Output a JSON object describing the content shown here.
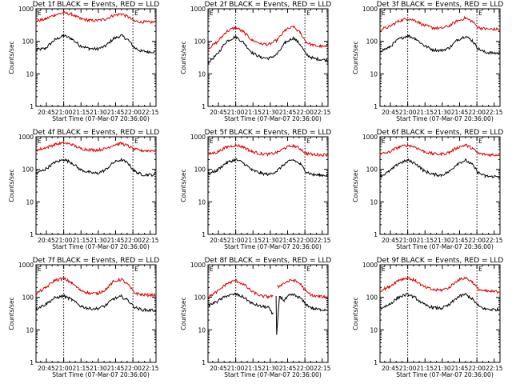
{
  "colors": {
    "events": "#000000",
    "lld": "#e00000"
  },
  "chart_data": [
    {
      "type": "line",
      "title": "Det 1f BLACK = Events, RED = LLD",
      "xlabel": "Start Time (07-Mar-07 20:36:00)",
      "ylabel": "Counts/sec",
      "x_tick_labels": [
        "20:45",
        "21:00",
        "21:15",
        "21:30",
        "21:45",
        "22:00",
        "22:15"
      ],
      "y_tick_labels": [
        "1",
        "10",
        "100",
        "1000"
      ],
      "yscale": "log",
      "ylim": [
        1,
        1000
      ],
      "xlim_minutes": [
        36,
        140
      ],
      "marker_labels": [
        "E",
        "E"
      ],
      "series": [
        {
          "color": "black",
          "x": [
            36,
            44,
            52,
            60,
            67,
            74,
            82,
            89,
            96,
            103,
            110,
            116,
            121,
            127,
            133,
            140
          ],
          "y": [
            55,
            60,
            110,
            150,
            120,
            75,
            60,
            58,
            70,
            120,
            150,
            110,
            65,
            50,
            48,
            48
          ]
        },
        {
          "color": "red",
          "x": [
            36,
            44,
            52,
            60,
            67,
            74,
            82,
            89,
            96,
            103,
            110,
            116,
            121,
            127,
            133,
            140
          ],
          "y": [
            420,
            480,
            650,
            750,
            680,
            500,
            440,
            430,
            480,
            620,
            700,
            560,
            420,
            400,
            390,
            390
          ]
        }
      ]
    },
    {
      "type": "line",
      "title": "Det 2f BLACK = Events, RED = LLD",
      "xlabel": "Start Time (07-Mar-07 20:36:00)",
      "ylabel": "Counts/sec",
      "x_tick_labels": [
        "20:45",
        "21:00",
        "21:15",
        "21:30",
        "21:45",
        "22:00",
        "22:15"
      ],
      "y_tick_labels": [
        "1",
        "10",
        "100",
        "1000"
      ],
      "yscale": "log",
      "ylim": [
        1,
        1000
      ],
      "xlim_minutes": [
        36,
        140
      ],
      "marker_labels": [
        "E",
        "E"
      ],
      "series": [
        {
          "color": "black",
          "x": [
            36,
            44,
            52,
            60,
            67,
            74,
            82,
            89,
            96,
            103,
            110,
            116,
            121,
            127,
            133,
            140
          ],
          "y": [
            22,
            40,
            100,
            140,
            90,
            45,
            32,
            30,
            40,
            90,
            130,
            80,
            40,
            30,
            28,
            26
          ]
        },
        {
          "color": "red",
          "x": [
            36,
            44,
            52,
            60,
            67,
            74,
            82,
            89,
            96,
            103,
            110,
            116,
            121,
            127,
            133,
            140
          ],
          "y": [
            60,
            95,
            200,
            270,
            190,
            110,
            85,
            80,
            110,
            220,
            280,
            180,
            95,
            75,
            70,
            68
          ]
        }
      ]
    },
    {
      "type": "line",
      "title": "Det 3f BLACK = Events, RED = LLD",
      "xlabel": "Start Time (07-Mar-07 20:36:00)",
      "ylabel": "Counts/sec",
      "x_tick_labels": [
        "20:45",
        "21:00",
        "21:15",
        "21:30",
        "21:45",
        "22:00",
        "22:15"
      ],
      "y_tick_labels": [
        "1",
        "10",
        "100",
        "1000"
      ],
      "yscale": "log",
      "ylim": [
        1,
        1000
      ],
      "xlim_minutes": [
        36,
        140
      ],
      "marker_labels": [
        "E",
        "E"
      ],
      "series": [
        {
          "color": "black",
          "x": [
            36,
            44,
            52,
            60,
            67,
            74,
            82,
            89,
            96,
            103,
            110,
            116,
            121,
            127,
            133,
            140
          ],
          "y": [
            50,
            65,
            115,
            150,
            120,
            75,
            55,
            52,
            62,
            110,
            145,
            105,
            60,
            46,
            44,
            43
          ]
        },
        {
          "color": "red",
          "x": [
            36,
            44,
            52,
            60,
            67,
            74,
            82,
            89,
            96,
            103,
            110,
            116,
            121,
            127,
            133,
            140
          ],
          "y": [
            230,
            280,
            420,
            500,
            430,
            310,
            260,
            250,
            300,
            420,
            520,
            410,
            270,
            240,
            235,
            235
          ]
        }
      ]
    },
    {
      "type": "line",
      "title": "Det 4f BLACK = Events, RED = LLD",
      "xlabel": "Start Time (07-Mar-07 20:36:00)",
      "ylabel": "Counts/sec",
      "x_tick_labels": [
        "20:45",
        "21:00",
        "21:15",
        "21:30",
        "21:45",
        "22:00",
        "22:15"
      ],
      "y_tick_labels": [
        "1",
        "10",
        "100",
        "1000"
      ],
      "yscale": "log",
      "ylim": [
        1,
        1000
      ],
      "xlim_minutes": [
        36,
        140
      ],
      "marker_labels": [
        "E",
        "E"
      ],
      "series": [
        {
          "color": "black",
          "x": [
            36,
            44,
            52,
            60,
            67,
            74,
            82,
            89,
            96,
            103,
            110,
            116,
            121,
            127,
            133,
            140
          ],
          "y": [
            75,
            100,
            160,
            200,
            160,
            100,
            80,
            75,
            95,
            160,
            200,
            150,
            90,
            70,
            68,
            68
          ]
        },
        {
          "color": "red",
          "x": [
            36,
            44,
            52,
            60,
            67,
            74,
            82,
            89,
            96,
            103,
            110,
            116,
            121,
            127,
            133,
            140
          ],
          "y": [
            390,
            450,
            580,
            650,
            580,
            440,
            400,
            390,
            430,
            560,
            630,
            520,
            410,
            380,
            375,
            375
          ]
        }
      ]
    },
    {
      "type": "line",
      "title": "Det 5f BLACK = Events, RED = LLD",
      "xlabel": "Start Time (07-Mar-07 20:36:00)",
      "ylabel": "Counts/sec",
      "x_tick_labels": [
        "20:45",
        "21:00",
        "21:15",
        "21:30",
        "21:45",
        "22:00",
        "22:15"
      ],
      "y_tick_labels": [
        "1",
        "10",
        "100",
        "1000"
      ],
      "yscale": "log",
      "ylim": [
        1,
        1000
      ],
      "xlim_minutes": [
        36,
        140
      ],
      "marker_labels": [
        "E",
        "E"
      ],
      "series": [
        {
          "color": "black",
          "x": [
            36,
            44,
            52,
            60,
            67,
            74,
            82,
            89,
            96,
            103,
            110,
            116,
            121,
            127,
            133,
            140
          ],
          "y": [
            70,
            95,
            160,
            200,
            155,
            95,
            75,
            70,
            90,
            155,
            195,
            145,
            85,
            68,
            66,
            66
          ]
        },
        {
          "color": "red",
          "x": [
            36,
            44,
            52,
            60,
            67,
            74,
            82,
            89,
            96,
            103,
            110,
            116,
            121,
            127,
            133,
            140
          ],
          "y": [
            290,
            340,
            480,
            560,
            480,
            350,
            300,
            290,
            330,
            460,
            540,
            430,
            310,
            285,
            280,
            280
          ]
        }
      ]
    },
    {
      "type": "line",
      "title": "Det 6f BLACK = Events, RED = LLD",
      "xlabel": "Start Time (07-Mar-07 20:36:00)",
      "ylabel": "Counts/sec",
      "x_tick_labels": [
        "20:45",
        "21:00",
        "21:15",
        "21:30",
        "21:45",
        "22:00",
        "22:15"
      ],
      "y_tick_labels": [
        "1",
        "10",
        "100",
        "1000"
      ],
      "yscale": "log",
      "ylim": [
        1,
        1000
      ],
      "xlim_minutes": [
        36,
        140
      ],
      "marker_labels": [
        "E",
        "E"
      ],
      "series": [
        {
          "color": "black",
          "x": [
            36,
            44,
            52,
            60,
            67,
            74,
            82,
            89,
            96,
            103,
            110,
            116,
            121,
            127,
            133,
            140
          ],
          "y": [
            60,
            85,
            150,
            190,
            150,
            90,
            70,
            66,
            85,
            150,
            190,
            140,
            80,
            62,
            60,
            60
          ]
        },
        {
          "color": "red",
          "x": [
            36,
            44,
            52,
            60,
            67,
            74,
            82,
            89,
            96,
            103,
            110,
            116,
            121,
            127,
            133,
            140
          ],
          "y": [
            290,
            340,
            480,
            560,
            480,
            350,
            300,
            290,
            330,
            470,
            560,
            440,
            310,
            285,
            280,
            280
          ]
        }
      ]
    },
    {
      "type": "line",
      "title": "Det 7f BLACK = Events, RED = LLD",
      "xlabel": "Start Time (07-Mar-07 20:36:00)",
      "ylabel": "Counts/sec",
      "x_tick_labels": [
        "20:45",
        "21:00",
        "21:15",
        "21:30",
        "21:45",
        "22:00",
        "22:15"
      ],
      "y_tick_labels": [
        "1",
        "10",
        "100",
        "1000"
      ],
      "yscale": "log",
      "ylim": [
        1,
        1000
      ],
      "xlim_minutes": [
        36,
        140
      ],
      "marker_labels": [
        "E",
        "E"
      ],
      "series": [
        {
          "color": "black",
          "x": [
            36,
            44,
            52,
            60,
            67,
            74,
            82,
            89,
            96,
            103,
            110,
            116,
            121,
            127,
            133,
            140
          ],
          "y": [
            45,
            60,
            95,
            110,
            85,
            55,
            45,
            45,
            55,
            90,
            105,
            80,
            50,
            42,
            40,
            40
          ]
        },
        {
          "color": "red",
          "x": [
            36,
            44,
            52,
            60,
            67,
            74,
            82,
            89,
            96,
            103,
            110,
            116,
            121,
            127,
            133,
            140
          ],
          "y": [
            130,
            190,
            330,
            380,
            280,
            170,
            135,
            130,
            170,
            300,
            360,
            240,
            140,
            120,
            118,
            118
          ]
        }
      ]
    },
    {
      "type": "line",
      "title": "Det 8f BLACK = Events, RED = LLD",
      "xlabel": "Start Time (07-Mar-07 20:36:00)",
      "ylabel": "Counts/sec",
      "x_tick_labels": [
        "20:45",
        "21:00",
        "21:15",
        "21:30",
        "21:45",
        "22:00",
        "22:15"
      ],
      "y_tick_labels": [
        "1",
        "10",
        "100",
        "1000"
      ],
      "yscale": "log",
      "ylim": [
        1,
        1000
      ],
      "xlim_minutes": [
        36,
        140
      ],
      "marker_labels": [
        "E",
        "E"
      ],
      "series": [
        {
          "color": "black",
          "x": [
            36,
            44,
            52,
            60,
            67,
            74,
            82,
            88,
            92,
            92.5,
            95,
            95.5,
            98,
            102,
            106,
            110,
            116,
            121,
            127,
            133,
            140
          ],
          "y": [
            55,
            75,
            110,
            125,
            100,
            65,
            52,
            50,
            30,
            null,
            110,
            7,
            110,
            80,
            110,
            120,
            95,
            60,
            45,
            42,
            42
          ]
        },
        {
          "color": "red",
          "x": [
            36,
            44,
            52,
            60,
            67,
            74,
            82,
            88,
            92,
            92.5,
            96,
            100,
            104,
            110,
            116,
            121,
            127,
            133,
            140
          ],
          "y": [
            100,
            150,
            260,
            330,
            250,
            150,
            110,
            105,
            110,
            null,
            200,
            250,
            300,
            340,
            260,
            150,
            110,
            105,
            100
          ]
        }
      ]
    },
    {
      "type": "line",
      "title": "Det 9f BLACK = Events, RED = LLD",
      "xlabel": "Start Time (07-Mar-07 20:36:00)",
      "ylabel": "Counts/sec",
      "x_tick_labels": [
        "20:45",
        "21:00",
        "21:15",
        "21:30",
        "21:45",
        "22:00",
        "22:15"
      ],
      "y_tick_labels": [
        "1",
        "10",
        "100",
        "1000"
      ],
      "yscale": "log",
      "ylim": [
        1,
        1000
      ],
      "xlim_minutes": [
        36,
        140
      ],
      "marker_labels": [
        "E",
        "E"
      ],
      "series": [
        {
          "color": "black",
          "x": [
            36,
            44,
            52,
            60,
            67,
            74,
            82,
            89,
            96,
            103,
            110,
            116,
            121,
            127,
            133,
            140
          ],
          "y": [
            45,
            60,
            100,
            125,
            95,
            60,
            48,
            46,
            58,
            100,
            125,
            90,
            55,
            44,
            42,
            42
          ]
        },
        {
          "color": "red",
          "x": [
            36,
            44,
            52,
            60,
            67,
            74,
            82,
            89,
            96,
            103,
            110,
            116,
            121,
            127,
            133,
            140
          ],
          "y": [
            160,
            210,
            340,
            400,
            320,
            210,
            170,
            165,
            200,
            330,
            400,
            300,
            180,
            155,
            150,
            150
          ]
        }
      ]
    }
  ]
}
